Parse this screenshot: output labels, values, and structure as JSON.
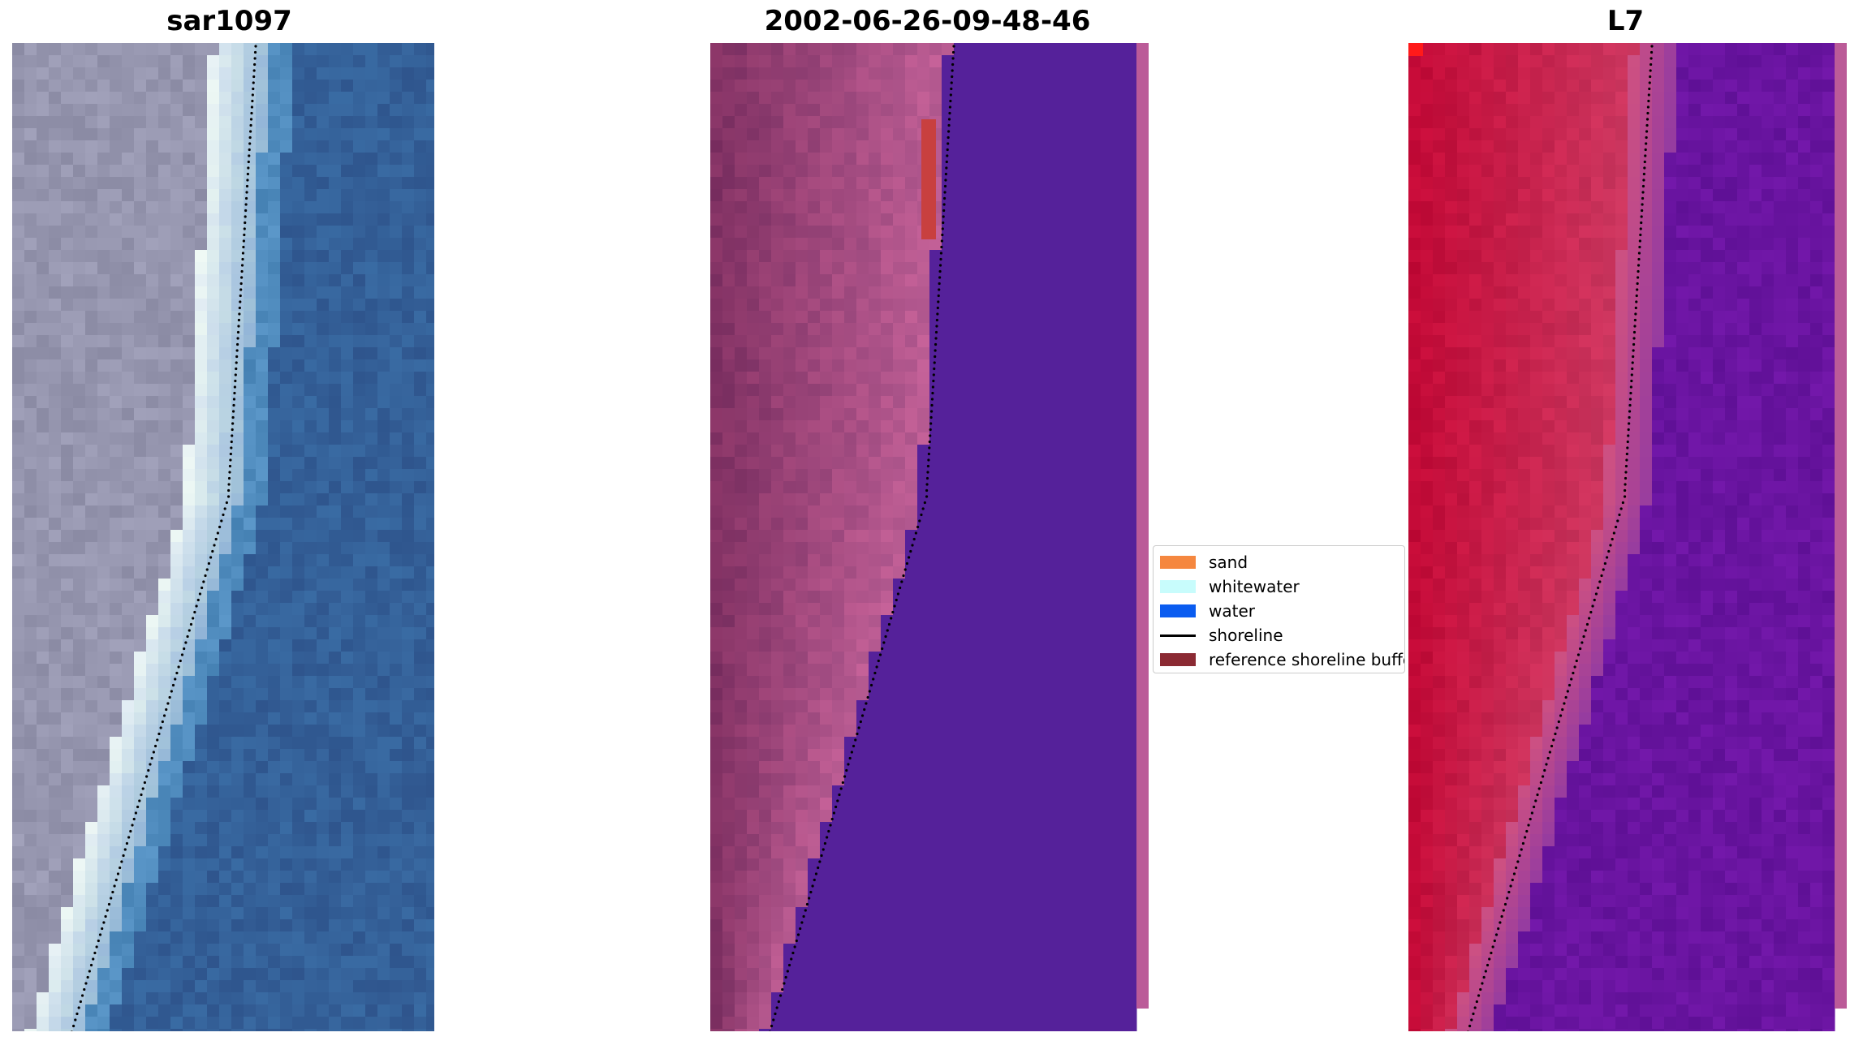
{
  "panels": [
    {
      "title": "sar1097",
      "style": "rgb"
    },
    {
      "title": "2002-06-26-09-48-46",
      "style": "classified"
    },
    {
      "title": "L7",
      "style": "index"
    }
  ],
  "legend": {
    "items": [
      {
        "label": "sand",
        "kind": "patch",
        "color": "#f5873f"
      },
      {
        "label": "whitewater",
        "kind": "patch",
        "color": "#c8fcfc"
      },
      {
        "label": "water",
        "kind": "patch",
        "color": "#0a5cf0"
      },
      {
        "label": "shoreline",
        "kind": "line",
        "color": "#000000"
      },
      {
        "label": "reference shoreline buffer",
        "kind": "patch",
        "color": "#8b2a33"
      }
    ]
  },
  "colors": {
    "water_class": "#55219a",
    "buffer_strip": "#bb5b98",
    "shoreline_points": "#000000",
    "land_index": "#c8133d",
    "water_index": "#6f18a0"
  }
}
